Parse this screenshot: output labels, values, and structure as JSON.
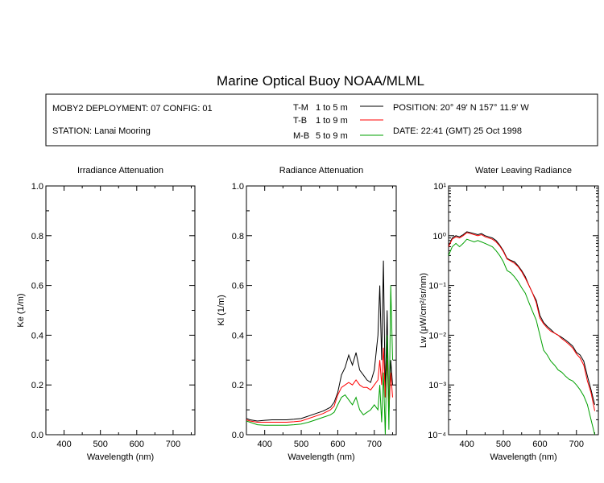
{
  "figure": {
    "title": "Marine Optical Buoy NOAA/MLML"
  },
  "info": {
    "deployment": "MOBY2 DEPLOYMENT: 07 CONFIG: 01",
    "station": "STATION: Lanai Mooring",
    "position": "POSITION: 20° 49' N   157° 11.9' W",
    "date": "DATE: 22:41 (GMT) 25 Oct 1998",
    "legend": [
      {
        "key": "T-M",
        "range": "1 to 5  m",
        "color": "#000000"
      },
      {
        "key": "T-B",
        "range": "1 to 9  m",
        "color": "#ff0000"
      },
      {
        "key": "M-B",
        "range": "5 to 9  m",
        "color": "#00a000"
      }
    ]
  },
  "chart_data": [
    {
      "type": "line",
      "title": "Irradiance Attenuation",
      "xlabel": "Wavelength (nm)",
      "ylabel": "Ke  (1/m)",
      "xlim": [
        350,
        760
      ],
      "ylim": [
        0,
        1
      ],
      "xticks": [
        400,
        500,
        600,
        700
      ],
      "yticks": [
        0.0,
        0.2,
        0.4,
        0.6,
        0.8,
        1.0
      ],
      "ytick_labels": [
        "0.0",
        "0.2",
        "0.4",
        "0.6",
        "0.8",
        "1.0"
      ],
      "series": []
    },
    {
      "type": "line",
      "title": "Radiance Attenuation",
      "xlabel": "Wavelength (nm)",
      "ylabel": "Kl  (1/m)",
      "xlim": [
        350,
        760
      ],
      "ylim": [
        0,
        1
      ],
      "xticks": [
        400,
        500,
        600,
        700
      ],
      "yticks": [
        0.0,
        0.2,
        0.4,
        0.6,
        0.8,
        1.0
      ],
      "ytick_labels": [
        "0.0",
        "0.2",
        "0.4",
        "0.6",
        "0.8",
        "1.0"
      ],
      "series": [
        {
          "name": "T-M",
          "color": "#000000",
          "x": [
            350,
            360,
            380,
            400,
            420,
            440,
            460,
            480,
            500,
            520,
            540,
            560,
            580,
            590,
            600,
            610,
            620,
            630,
            640,
            650,
            660,
            670,
            680,
            690,
            700,
            710,
            715,
            720,
            725,
            730,
            735,
            740,
            745,
            750
          ],
          "y": [
            0.065,
            0.06,
            0.055,
            0.058,
            0.06,
            0.06,
            0.06,
            0.062,
            0.065,
            0.075,
            0.085,
            0.095,
            0.11,
            0.13,
            0.17,
            0.24,
            0.27,
            0.32,
            0.28,
            0.33,
            0.26,
            0.24,
            0.22,
            0.21,
            0.26,
            0.4,
            0.6,
            0.3,
            0.7,
            0.15,
            0.5,
            0.08,
            0.3,
            0.2
          ]
        },
        {
          "name": "T-B",
          "color": "#ff0000",
          "x": [
            350,
            360,
            380,
            400,
            420,
            440,
            460,
            480,
            500,
            520,
            540,
            560,
            580,
            590,
            600,
            610,
            620,
            630,
            640,
            650,
            660,
            670,
            680,
            690,
            700,
            710,
            715,
            720,
            725,
            730,
            735,
            740,
            745,
            750
          ],
          "y": [
            0.06,
            0.055,
            0.05,
            0.05,
            0.05,
            0.05,
            0.05,
            0.052,
            0.055,
            0.065,
            0.075,
            0.085,
            0.1,
            0.115,
            0.16,
            0.19,
            0.2,
            0.21,
            0.2,
            0.22,
            0.2,
            0.19,
            0.19,
            0.18,
            0.2,
            0.22,
            0.3,
            0.2,
            0.35,
            0.15,
            0.3,
            0.1,
            0.25,
            0.15
          ]
        },
        {
          "name": "M-B",
          "color": "#00a000",
          "x": [
            350,
            360,
            380,
            400,
            420,
            440,
            460,
            480,
            500,
            520,
            540,
            560,
            580,
            590,
            600,
            610,
            620,
            630,
            640,
            650,
            660,
            670,
            680,
            690,
            700,
            710,
            715,
            720,
            725,
            730,
            735,
            740,
            745,
            750
          ],
          "y": [
            0.055,
            0.05,
            0.04,
            0.038,
            0.038,
            0.038,
            0.038,
            0.04,
            0.043,
            0.05,
            0.06,
            0.07,
            0.08,
            0.09,
            0.12,
            0.15,
            0.16,
            0.14,
            0.12,
            0.15,
            0.1,
            0.08,
            0.09,
            0.1,
            0.12,
            0.1,
            0.2,
            0.05,
            0.25,
            0.0,
            0.4,
            0.02,
            0.6,
            0.3
          ]
        }
      ]
    },
    {
      "type": "line",
      "title": "Water Leaving Radiance",
      "xlabel": "Wavelength (nm)",
      "ylabel": "Lw  (μW/cm²/sr/nm)",
      "xlim": [
        350,
        760
      ],
      "ylim": [
        0.0001,
        10
      ],
      "yscale": "log",
      "xticks": [
        400,
        500,
        600,
        700
      ],
      "yticks": [
        0.0001,
        0.001,
        0.01,
        0.1,
        1,
        10
      ],
      "ytick_labels": [
        "10⁻⁴",
        "10⁻³",
        "10⁻²",
        "10⁻¹",
        "10⁰",
        "10¹"
      ],
      "series": [
        {
          "name": "T-M",
          "color": "#000000",
          "x": [
            350,
            360,
            370,
            380,
            390,
            400,
            410,
            420,
            430,
            440,
            450,
            460,
            470,
            480,
            490,
            500,
            510,
            520,
            530,
            540,
            550,
            560,
            570,
            580,
            590,
            600,
            610,
            620,
            630,
            640,
            650,
            660,
            670,
            680,
            690,
            700,
            710,
            720,
            730,
            740,
            750
          ],
          "y": [
            0.6,
            0.9,
            1.0,
            0.95,
            1.05,
            1.2,
            1.15,
            1.1,
            1.05,
            1.1,
            1.0,
            0.95,
            0.9,
            0.8,
            0.65,
            0.5,
            0.35,
            0.32,
            0.3,
            0.25,
            0.2,
            0.15,
            0.1,
            0.07,
            0.05,
            0.025,
            0.018,
            0.015,
            0.013,
            0.011,
            0.01,
            0.009,
            0.008,
            0.007,
            0.006,
            0.0045,
            0.004,
            0.003,
            0.0015,
            0.0008,
            0.0004
          ]
        },
        {
          "name": "T-B",
          "color": "#ff0000",
          "x": [
            350,
            360,
            370,
            380,
            390,
            400,
            410,
            420,
            430,
            440,
            450,
            460,
            470,
            480,
            490,
            500,
            510,
            520,
            530,
            540,
            550,
            560,
            570,
            580,
            590,
            600,
            610,
            620,
            630,
            640,
            650,
            660,
            670,
            680,
            690,
            700,
            710,
            720,
            730,
            740,
            750
          ],
          "y": [
            0.6,
            0.85,
            0.95,
            0.9,
            1.0,
            1.15,
            1.1,
            1.05,
            1.0,
            1.05,
            0.95,
            0.9,
            0.85,
            0.75,
            0.62,
            0.48,
            0.34,
            0.31,
            0.28,
            0.24,
            0.19,
            0.14,
            0.1,
            0.07,
            0.045,
            0.022,
            0.017,
            0.014,
            0.012,
            0.011,
            0.01,
            0.0085,
            0.0075,
            0.0065,
            0.0055,
            0.0042,
            0.0035,
            0.0025,
            0.0012,
            0.0007,
            0.0003
          ]
        },
        {
          "name": "M-B",
          "color": "#00a000",
          "x": [
            350,
            360,
            370,
            380,
            390,
            400,
            410,
            420,
            430,
            440,
            450,
            460,
            470,
            480,
            490,
            500,
            510,
            520,
            530,
            540,
            550,
            560,
            570,
            580,
            590,
            600,
            610,
            620,
            630,
            640,
            650,
            660,
            670,
            680,
            690,
            700,
            710,
            720,
            730,
            740,
            750
          ],
          "y": [
            0.4,
            0.6,
            0.7,
            0.6,
            0.7,
            0.85,
            0.8,
            0.75,
            0.8,
            0.75,
            0.7,
            0.65,
            0.6,
            0.5,
            0.4,
            0.3,
            0.2,
            0.18,
            0.15,
            0.12,
            0.09,
            0.07,
            0.045,
            0.03,
            0.02,
            0.01,
            0.005,
            0.004,
            0.003,
            0.0025,
            0.002,
            0.0018,
            0.0015,
            0.0013,
            0.0012,
            0.001,
            0.0008,
            0.0006,
            0.0004,
            0.0002,
            0.0001
          ]
        }
      ]
    }
  ]
}
